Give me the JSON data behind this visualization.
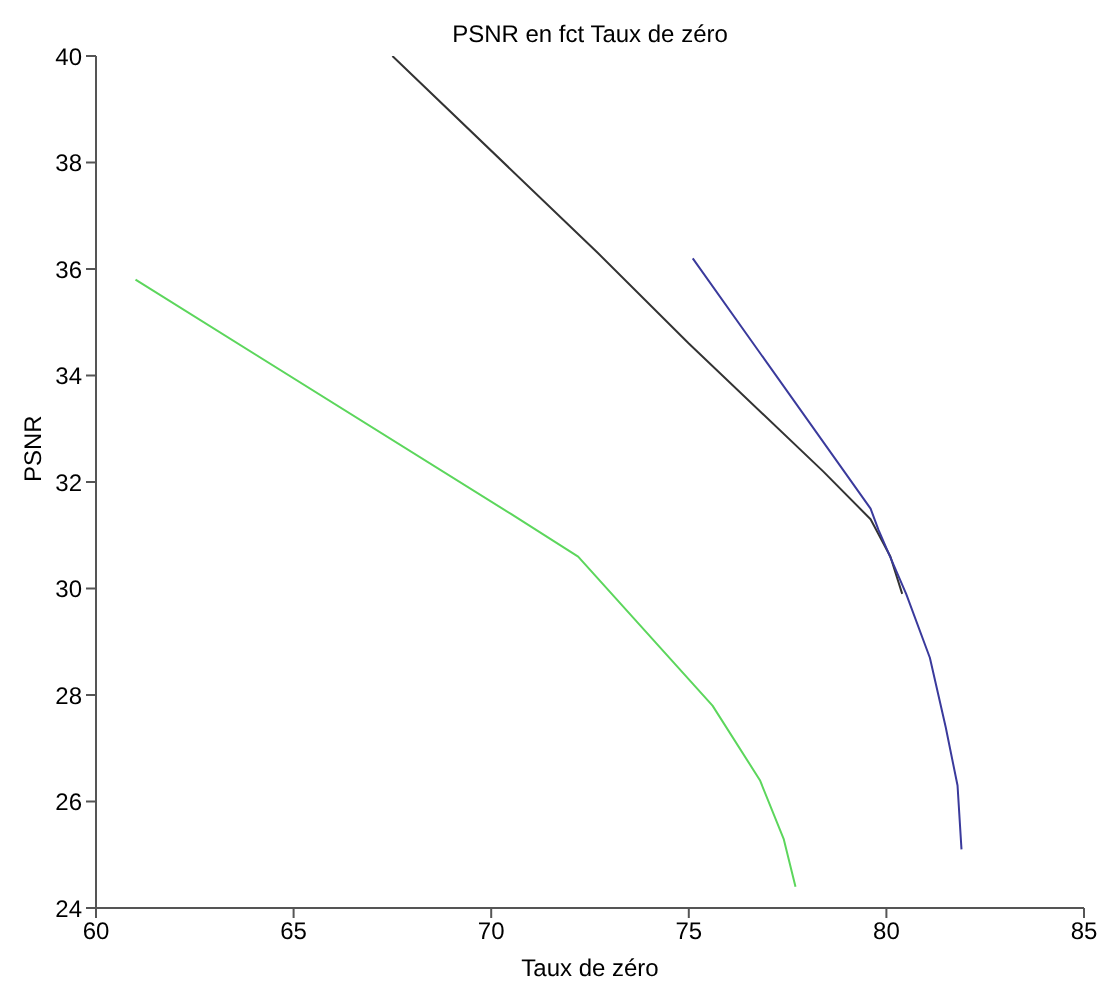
{
  "chart_data": {
    "type": "line",
    "title": "PSNR en fct Taux de zéro",
    "xlabel": "Taux de zéro",
    "ylabel": "PSNR",
    "xlim": [
      60,
      85
    ],
    "xticks": [
      60,
      65,
      70,
      75,
      80,
      85
    ],
    "ylim": [
      24,
      40
    ],
    "yticks": [
      24,
      26,
      28,
      30,
      32,
      34,
      36,
      38,
      40
    ],
    "grid": false,
    "legend": false,
    "marker": "none",
    "line_style": "solid",
    "series": [
      {
        "color": "#333333",
        "x": [
          67.5,
          72.7,
          75.0,
          78.4,
          79.6,
          80.1,
          80.4
        ],
        "values": [
          40,
          36.3,
          34.6,
          32.2,
          31.3,
          30.6,
          29.9
        ]
      },
      {
        "color": "#3a3a9c",
        "x": [
          75.1,
          79.6,
          79.8,
          80.5,
          81.1,
          81.5,
          81.8,
          81.9
        ],
        "values": [
          36.2,
          31.5,
          31.1,
          29.9,
          28.7,
          27.4,
          26.3,
          25.1
        ]
      },
      {
        "color": "#5cd65c",
        "x": [
          61.0,
          70.5,
          72.2,
          75.6,
          76.8,
          77.4,
          77.7
        ],
        "values": [
          35.8,
          31.4,
          30.6,
          27.8,
          26.4,
          25.3,
          24.4
        ]
      }
    ]
  }
}
